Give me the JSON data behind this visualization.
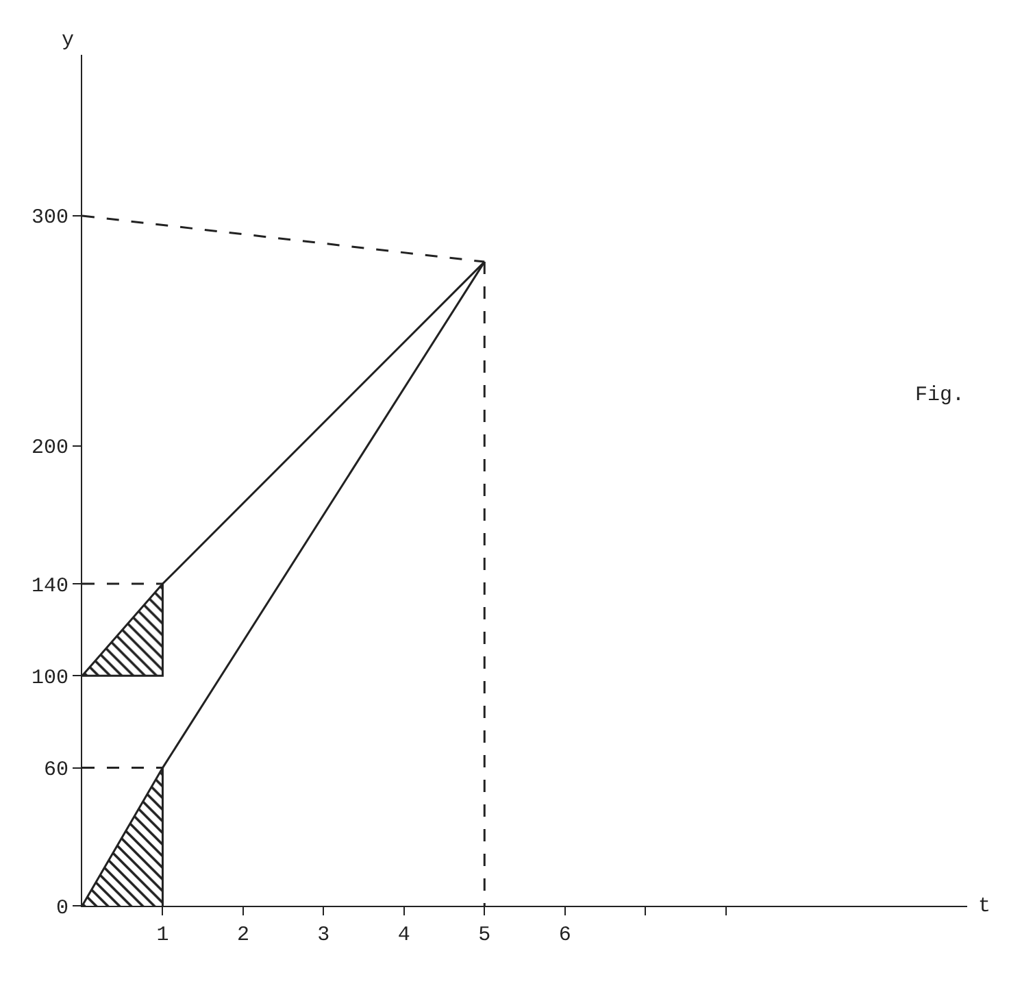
{
  "chart_data": {
    "type": "line",
    "xlabel": "t",
    "ylabel": "y",
    "series": [
      {
        "color": "#222222",
        "x": [
          0,
          1,
          1
        ],
        "values": [
          100,
          100,
          140
        ]
      },
      {
        "color": "#222222",
        "x": [
          1,
          1
        ],
        "values": [
          0,
          60
        ]
      },
      {
        "color": "#222222",
        "x": [
          0,
          1,
          5
        ],
        "values": [
          100,
          140,
          280
        ],
        "lower": [
          100,
          100,
          null
        ],
        "upper": [
          100,
          140,
          null
        ]
      },
      {
        "color": "#222222",
        "x": [
          0,
          1,
          5
        ],
        "values": [
          0,
          60,
          280
        ],
        "lower": [
          0,
          0,
          null
        ],
        "upper": [
          0,
          60,
          null
        ]
      },
      {
        "color": "#222222",
        "x": [
          0,
          1
        ],
        "values": [
          140,
          140
        ],
        "line_style": "dashed"
      },
      {
        "color": "#222222",
        "x": [
          0,
          1
        ],
        "values": [
          60,
          60
        ],
        "line_style": "dashed"
      },
      {
        "color": "#222222",
        "x": [
          0,
          5
        ],
        "values": [
          300,
          280
        ],
        "line_style": "dashed"
      },
      {
        "color": "#222222",
        "x": [
          5,
          5
        ],
        "values": [
          280,
          0
        ],
        "line_style": "dashed"
      }
    ],
    "xlim": [
      0,
      11
    ],
    "ylim": [
      0,
      370
    ],
    "xticks": [
      1,
      2,
      3,
      4,
      5,
      6,
      {
        "value": 7,
        "label": null
      },
      {
        "value": 8,
        "label": null
      }
    ],
    "yticks": [
      0,
      60,
      100,
      140,
      200,
      300
    ],
    "annotations": [
      "Fig."
    ],
    "grid": false,
    "marker": "none",
    "line_style": "solid"
  }
}
